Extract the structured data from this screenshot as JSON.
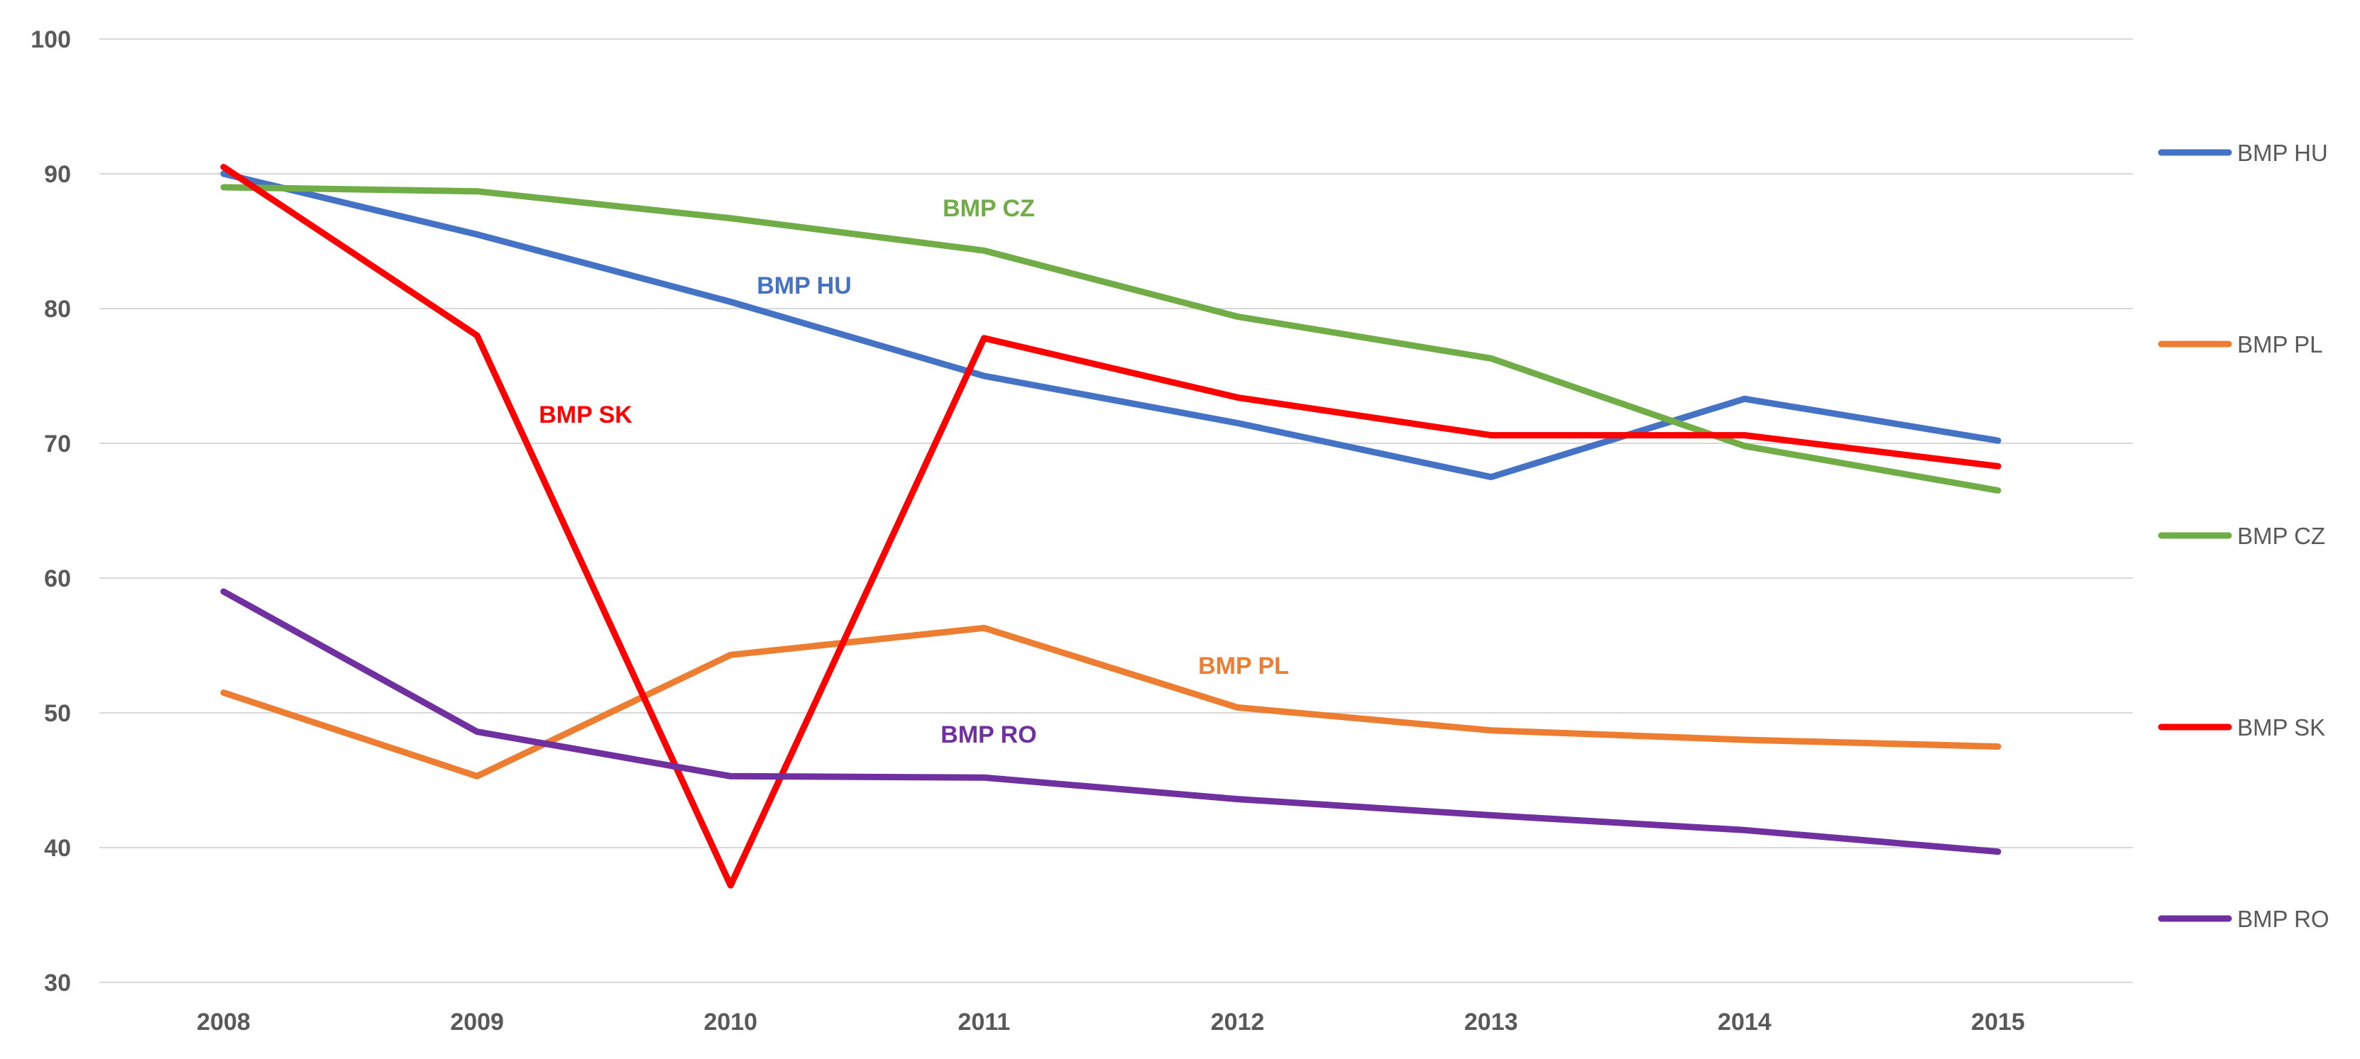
{
  "chart_data": {
    "type": "line",
    "title": "",
    "xlabel": "",
    "ylabel": "",
    "categories": [
      "2008",
      "2009",
      "2010",
      "2011",
      "2012",
      "2013",
      "2014",
      "2015"
    ],
    "yticks": [
      "100",
      "90",
      "80",
      "70",
      "60",
      "50",
      "40",
      "30"
    ],
    "ylim": [
      30,
      100
    ],
    "grid": true,
    "legend_position": "right",
    "series": [
      {
        "name": "BMP HU",
        "color": "#4472C4",
        "values": [
          90,
          85.5,
          80.5,
          75,
          71.5,
          67.5,
          73.3,
          70.2
        ]
      },
      {
        "name": "BMP PL",
        "color": "#ED7D31",
        "values": [
          51.5,
          45.3,
          54.3,
          56.3,
          50.4,
          48.7,
          48,
          47.5
        ]
      },
      {
        "name": "BMP CZ",
        "color": "#70AD47",
        "values": [
          89,
          88.7,
          86.7,
          84.3,
          79.4,
          76.3,
          69.8,
          66.5
        ]
      },
      {
        "name": "BMP SK",
        "color": "#FF0000",
        "values": [
          90.5,
          78,
          37.2,
          77.8,
          73.4,
          70.6,
          70.6,
          68.3
        ]
      },
      {
        "name": "BMP RO",
        "color": "#7030A0",
        "values": [
          59,
          48.6,
          45.3,
          45.2,
          43.6,
          42.4,
          41.3,
          39.7
        ]
      }
    ],
    "annotations": [
      {
        "text": "BMP CZ",
        "series": "BMP CZ"
      },
      {
        "text": "BMP HU",
        "series": "BMP HU"
      },
      {
        "text": "BMP SK",
        "series": "BMP SK"
      },
      {
        "text": "BMP PL",
        "series": "BMP PL"
      },
      {
        "text": "BMP RO",
        "series": "BMP RO"
      }
    ]
  }
}
